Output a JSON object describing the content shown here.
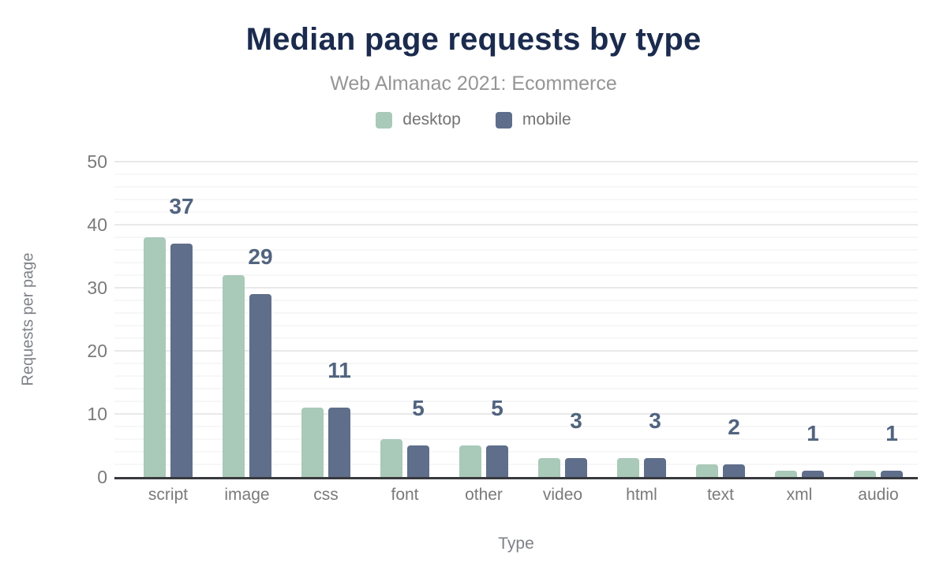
{
  "header": {
    "title": "Median page requests by type",
    "subtitle": "Web Almanac 2021: Ecommerce"
  },
  "axes": {
    "x_title": "Type",
    "y_title": "Requests per page"
  },
  "legend": {
    "items": [
      {
        "label": "desktop",
        "color": "#a9c9b9"
      },
      {
        "label": "mobile",
        "color": "#5f6e8a"
      }
    ]
  },
  "chart_data": {
    "type": "bar",
    "title": "Median page requests by type",
    "subtitle": "Web Almanac 2021: Ecommerce",
    "categories": [
      "script",
      "image",
      "css",
      "font",
      "other",
      "video",
      "html",
      "text",
      "xml",
      "audio"
    ],
    "series": [
      {
        "name": "desktop",
        "color": "#a9c9b9",
        "values": [
          38,
          32,
          11,
          6,
          5,
          3,
          3,
          2,
          1,
          1
        ]
      },
      {
        "name": "mobile",
        "color": "#5f6e8a",
        "values": [
          37,
          29,
          11,
          5,
          5,
          3,
          3,
          2,
          1,
          1
        ]
      }
    ],
    "data_labels": {
      "on_series": "mobile",
      "values": [
        37,
        29,
        11,
        5,
        5,
        3,
        3,
        2,
        1,
        1
      ]
    },
    "xlabel": "Type",
    "ylabel": "Requests per page",
    "ylim": [
      0,
      50
    ],
    "yticks": [
      0,
      10,
      20,
      30,
      40,
      50
    ],
    "minor_grid_step": 2,
    "grid": true,
    "legend_position": "top"
  },
  "colors": {
    "title": "#1b2b4e",
    "subtitle": "#959595",
    "tick_text": "#7a7a7a",
    "axis_title_text": "#7e8187",
    "legend_text": "#737373",
    "data_label": "#51647f",
    "grid_major": "#e9e9e9",
    "grid_minor": "#f7f7f7",
    "axis_line": "#38393d",
    "background": "#ffffff"
  }
}
